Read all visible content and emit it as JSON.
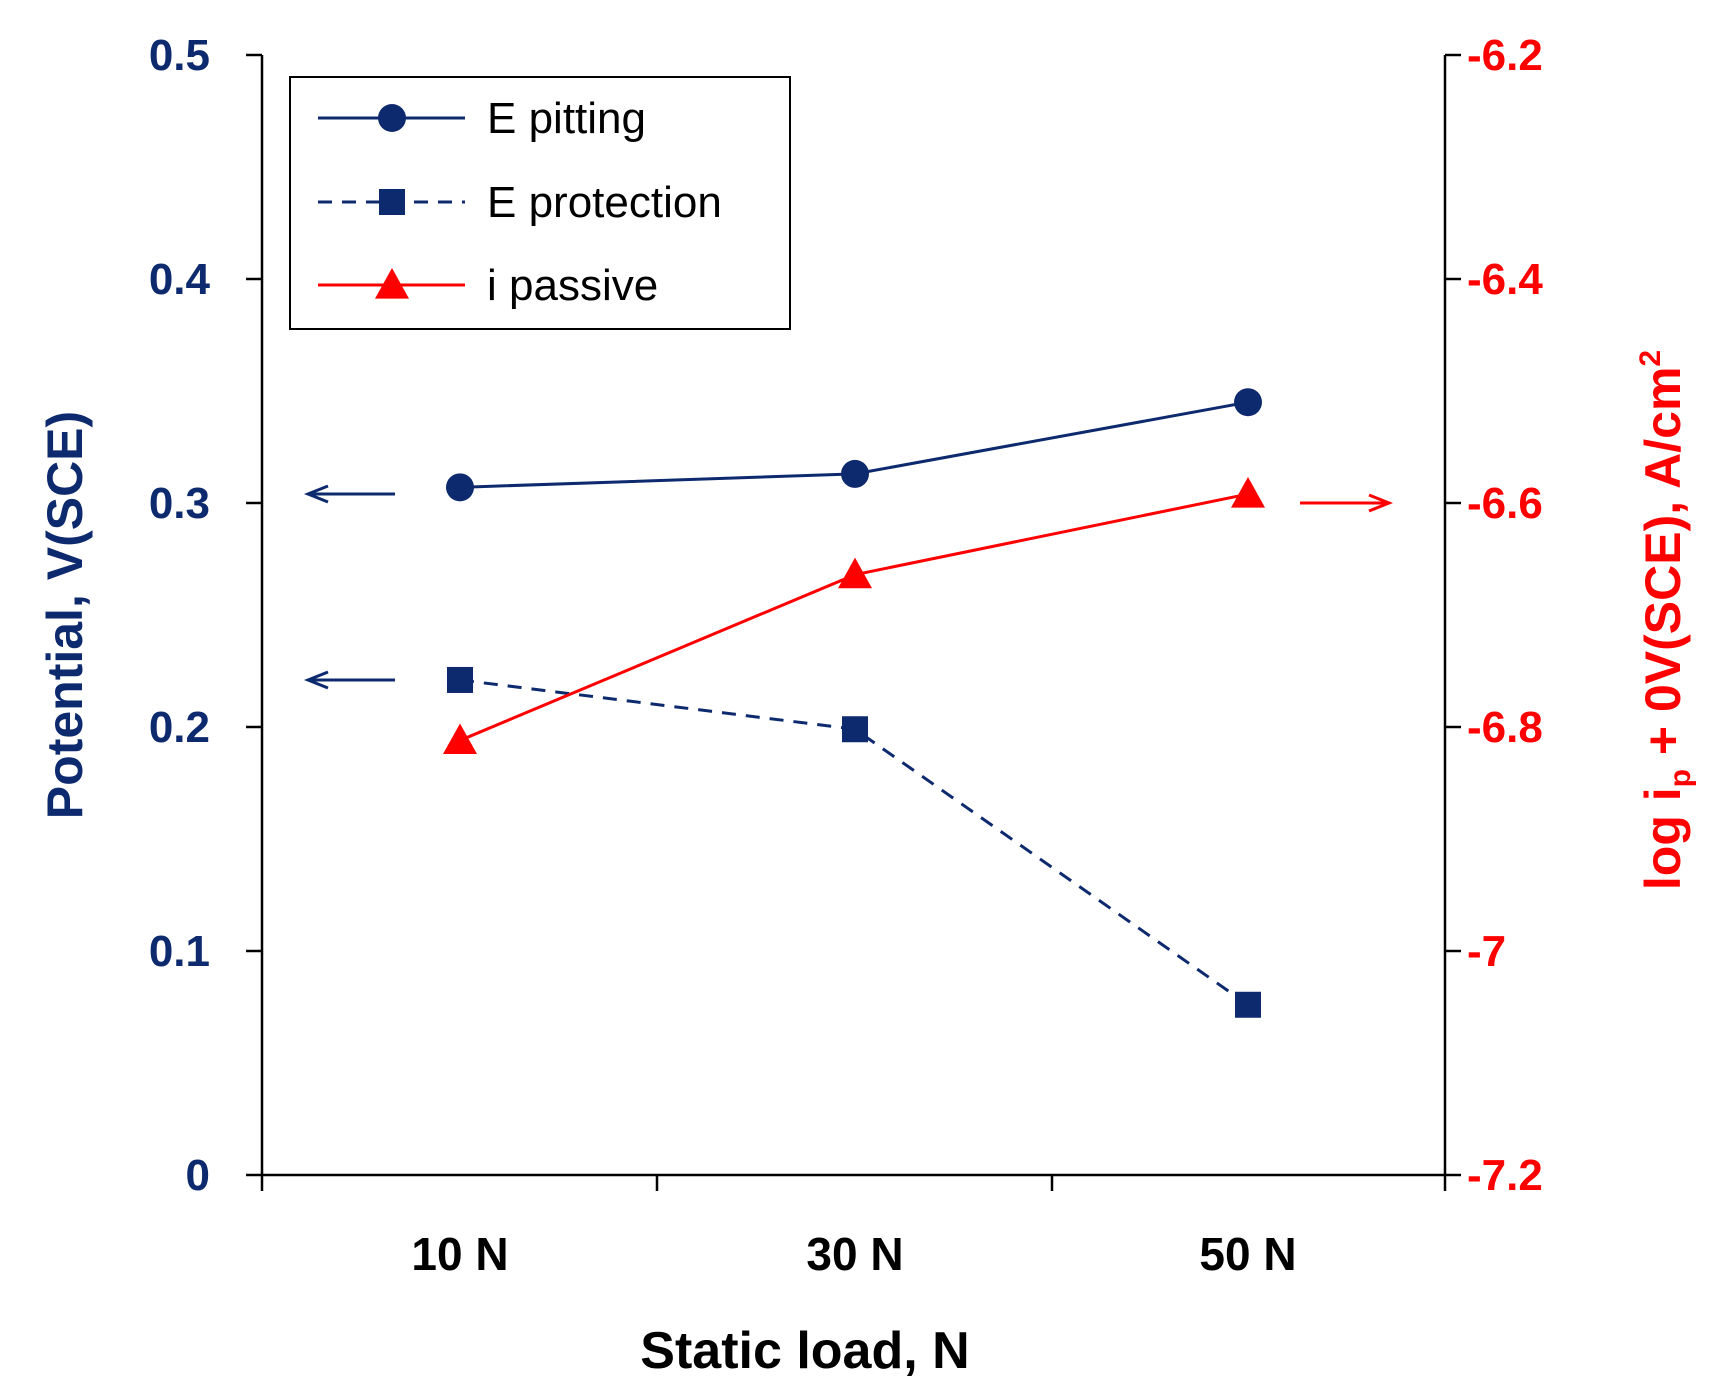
{
  "chart_data": {
    "type": "line",
    "categories": [
      "10 N",
      "30 N",
      "50 N"
    ],
    "xlabel": "Static load, N",
    "ylabel_left": "Potential, V(SCE)",
    "ylabel_right": {
      "prefix": "log i",
      "subscript": "p",
      "middle": " + 0V(SCE), A/cm",
      "superscript": "2"
    },
    "y_left": {
      "lim": [
        0,
        0.5
      ],
      "ticks": [
        0,
        0.1,
        0.2,
        0.3,
        0.4,
        0.5
      ],
      "tick_labels": [
        "0",
        "0.1",
        "0.2",
        "0.3",
        "0.4",
        "0.5"
      ]
    },
    "y_right": {
      "lim": [
        -7.2,
        -6.2
      ],
      "ticks": [
        -7.2,
        -7.0,
        -6.8,
        -6.6,
        -6.4,
        -6.2
      ],
      "tick_labels": [
        "-7.2",
        "-7",
        "-6.8",
        "-6.6",
        "-6.4",
        "-6.2"
      ]
    },
    "series": [
      {
        "name": "E pitting",
        "axis": "left",
        "values": [
          0.307,
          0.313,
          0.345
        ],
        "color": "#0e2a6e",
        "style": "solid",
        "marker": "circle"
      },
      {
        "name": "E protection",
        "axis": "left",
        "values": [
          0.221,
          0.199,
          0.076
        ],
        "color": "#0e2a6e",
        "style": "dashed",
        "marker": "square"
      },
      {
        "name": "i passive",
        "axis": "right",
        "values": [
          -6.812,
          -6.664,
          -6.592
        ],
        "color": "#ff0000",
        "style": "solid",
        "marker": "triangle"
      }
    ],
    "annotations": [
      {
        "type": "arrow",
        "direction": "left",
        "axis": "left",
        "y": 0.304,
        "color": "#0e2a6e"
      },
      {
        "type": "arrow",
        "direction": "left",
        "axis": "left",
        "y": 0.221,
        "color": "#0e2a6e"
      },
      {
        "type": "arrow",
        "direction": "right",
        "axis": "right",
        "y": -6.6,
        "color": "#ff0000"
      }
    ],
    "legend_position": "top-left",
    "grid": false
  }
}
